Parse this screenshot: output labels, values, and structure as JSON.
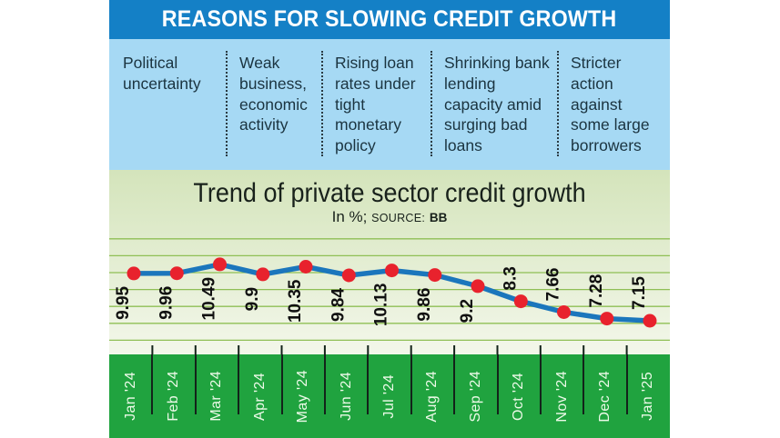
{
  "header": {
    "title": "REASONS FOR SLOWING CREDIT GROWTH"
  },
  "reasons": [
    "Political uncertainty",
    "Weak business, economic activity",
    "Rising loan rates under tight monetary policy",
    "Shrinking bank lending capacity amid surging bad loans",
    "Stricter action against some large borrowers"
  ],
  "chart": {
    "title": "Trend of private sector credit growth",
    "unit_label": "In %;",
    "source_label": "SOURCE:",
    "source_value": "BB"
  },
  "chart_data": {
    "type": "line",
    "title": "Trend of private sector credit growth",
    "unit": "%",
    "source": "BB",
    "categories": [
      "Jan '24",
      "Feb '24",
      "Mar '24",
      "Apr '24",
      "May '24",
      "Jun '24",
      "Jul '24",
      "Aug '24",
      "Sep '24",
      "Oct '24",
      "Nov '24",
      "Dec '24",
      "Jan '25"
    ],
    "values": [
      9.95,
      9.96,
      10.49,
      9.9,
      10.35,
      9.84,
      10.13,
      9.86,
      9.2,
      8.3,
      7.66,
      7.28,
      7.15
    ],
    "value_labels": [
      "9.95",
      "9.96",
      "10.49",
      "9.9",
      "10.35",
      "9.84",
      "10.13",
      "9.86",
      "9.2",
      "8.3",
      "7.66",
      "7.28",
      "7.15"
    ],
    "label_position": [
      "below",
      "below",
      "below",
      "below",
      "below",
      "below",
      "below",
      "below",
      "below",
      "above",
      "above",
      "above",
      "above"
    ],
    "xlabel": "",
    "ylabel": "",
    "ylim": [
      6,
      12
    ],
    "gridlines": [
      6,
      7,
      8,
      9,
      10,
      11,
      12
    ],
    "grid": "horizontal, unlabeled",
    "legend": "none",
    "line_color": "#1b76bc",
    "marker_color": "#e8222d",
    "grid_color": "#8fbf55"
  },
  "colors": {
    "header_blue": "#1480c6",
    "panel_light_blue": "#a6d9f4",
    "chart_bg_top": "#d4e4bb",
    "chart_bg_bottom": "#f3f7ea",
    "month_band_green": "#20a33f",
    "line_blue": "#1b76bc",
    "marker_red": "#e8222d",
    "grid_green": "#8fbf55",
    "text_dark": "#1b3440",
    "month_text": "#ecfae8"
  }
}
